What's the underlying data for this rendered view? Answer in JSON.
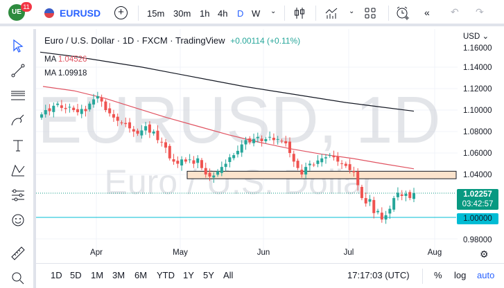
{
  "header": {
    "logo_badge": "11",
    "symbol": "EURUSD",
    "intervals": [
      "15m",
      "30m",
      "1h",
      "4h",
      "D",
      "W"
    ],
    "active_interval": "D"
  },
  "legend": {
    "title": "Euro / U.S. Dollar · 1D · FXCM · TradingView",
    "change": "+0.00114 (+0.11%)",
    "ma1_label": "MA",
    "ma1_value": "1.04526",
    "ma2_label": "MA",
    "ma2_value": "1.09918"
  },
  "watermark": {
    "line1": "EURUSD, 1D",
    "line2": "Euro / U.S. Dollar"
  },
  "price_axis": {
    "currency": "USD",
    "ticks": [
      "1.16000",
      "1.14000",
      "1.12000",
      "1.10000",
      "1.08000",
      "1.06000",
      "1.04000",
      "0.98000"
    ],
    "last_price": "1.02257",
    "countdown": "03:42:57",
    "level_label": "1.00000"
  },
  "time_axis": {
    "labels": [
      "Apr",
      "May",
      "Jun",
      "Jul",
      "Aug"
    ]
  },
  "bottom": {
    "ranges": [
      "1D",
      "5D",
      "1M",
      "3M",
      "6M",
      "YTD",
      "1Y",
      "5Y",
      "All"
    ],
    "clock": "17:17:03 (UTC)",
    "percent": "%",
    "log": "log",
    "auto": "auto"
  },
  "colors": {
    "up": "#26a69a",
    "down": "#ef5350",
    "ma_fast": "#e05260",
    "ma_slow": "#131722",
    "level": "#00bcd4",
    "zone": "#fbe3cc",
    "accent": "#2962ff"
  },
  "chart_data": {
    "type": "candlestick",
    "closes": [
      1.096,
      1.1,
      1.099,
      1.104,
      1.106,
      1.102,
      1.101,
      1.103,
      1.1,
      1.098,
      1.101,
      1.099,
      1.106,
      1.11,
      1.113,
      1.108,
      1.1,
      1.097,
      1.093,
      1.09,
      1.088,
      1.087,
      1.083,
      1.08,
      1.078,
      1.081,
      1.085,
      1.079,
      1.08,
      1.072,
      1.07,
      1.065,
      1.055,
      1.052,
      1.05,
      1.054,
      1.052,
      1.054,
      1.05,
      1.055,
      1.046,
      1.04,
      1.038,
      1.039,
      1.043,
      1.047,
      1.05,
      1.056,
      1.058,
      1.062,
      1.068,
      1.072,
      1.07,
      1.073,
      1.075,
      1.071,
      1.073,
      1.075,
      1.072,
      1.073,
      1.071,
      1.069,
      1.06,
      1.052,
      1.046,
      1.04,
      1.047,
      1.05,
      1.049,
      1.053,
      1.055,
      1.056,
      1.058,
      1.056,
      1.052,
      1.05,
      1.048,
      1.044,
      1.042,
      1.03,
      1.018,
      1.013,
      1.017,
      1.004,
      1.006,
      0.998,
      1.002,
      1.008,
      1.018,
      1.023,
      1.02,
      1.022,
      1.018,
      1.0226
    ],
    "ma_fast": [
      1.122,
      1.118,
      1.111,
      1.102,
      1.093,
      1.085,
      1.077,
      1.07,
      1.064,
      1.059,
      1.055,
      1.05,
      1.0453
    ],
    "ma_slow": [
      1.154,
      1.15,
      1.145,
      1.14,
      1.134,
      1.128,
      1.122,
      1.117,
      1.112,
      1.107,
      1.103,
      1.099
    ],
    "zone": [
      1.036,
      1.043
    ],
    "level": 1.0,
    "ylim": [
      0.975,
      1.165
    ]
  }
}
